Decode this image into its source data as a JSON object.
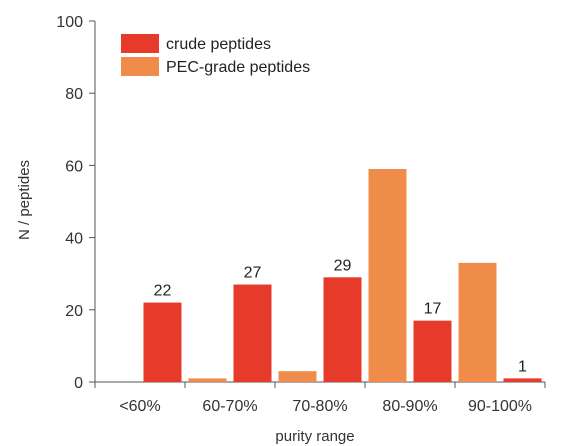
{
  "chart_data": {
    "type": "bar",
    "xlabel": "purity range",
    "ylabel": "N / peptides",
    "categories": [
      "<60%",
      "60-70%",
      "70-80%",
      "80-90%",
      "90-100%"
    ],
    "ylim": [
      0,
      100
    ],
    "yticks": [
      0,
      20,
      40,
      60,
      80,
      100
    ],
    "grid": false,
    "legend_position": "top-left",
    "series": [
      {
        "name": "PEC-grade peptides",
        "color": "#f08c4a",
        "values": [
          0,
          1,
          3,
          59,
          33
        ]
      },
      {
        "name": "crude peptides",
        "color": "#e63a2b",
        "values": [
          22,
          27,
          29,
          17,
          1
        ]
      }
    ],
    "data_labels": {
      "series": "crude peptides",
      "values": [
        "22",
        "27",
        "29",
        "17",
        "1"
      ]
    },
    "legend_order": [
      "crude peptides",
      "PEC-grade peptides"
    ]
  }
}
